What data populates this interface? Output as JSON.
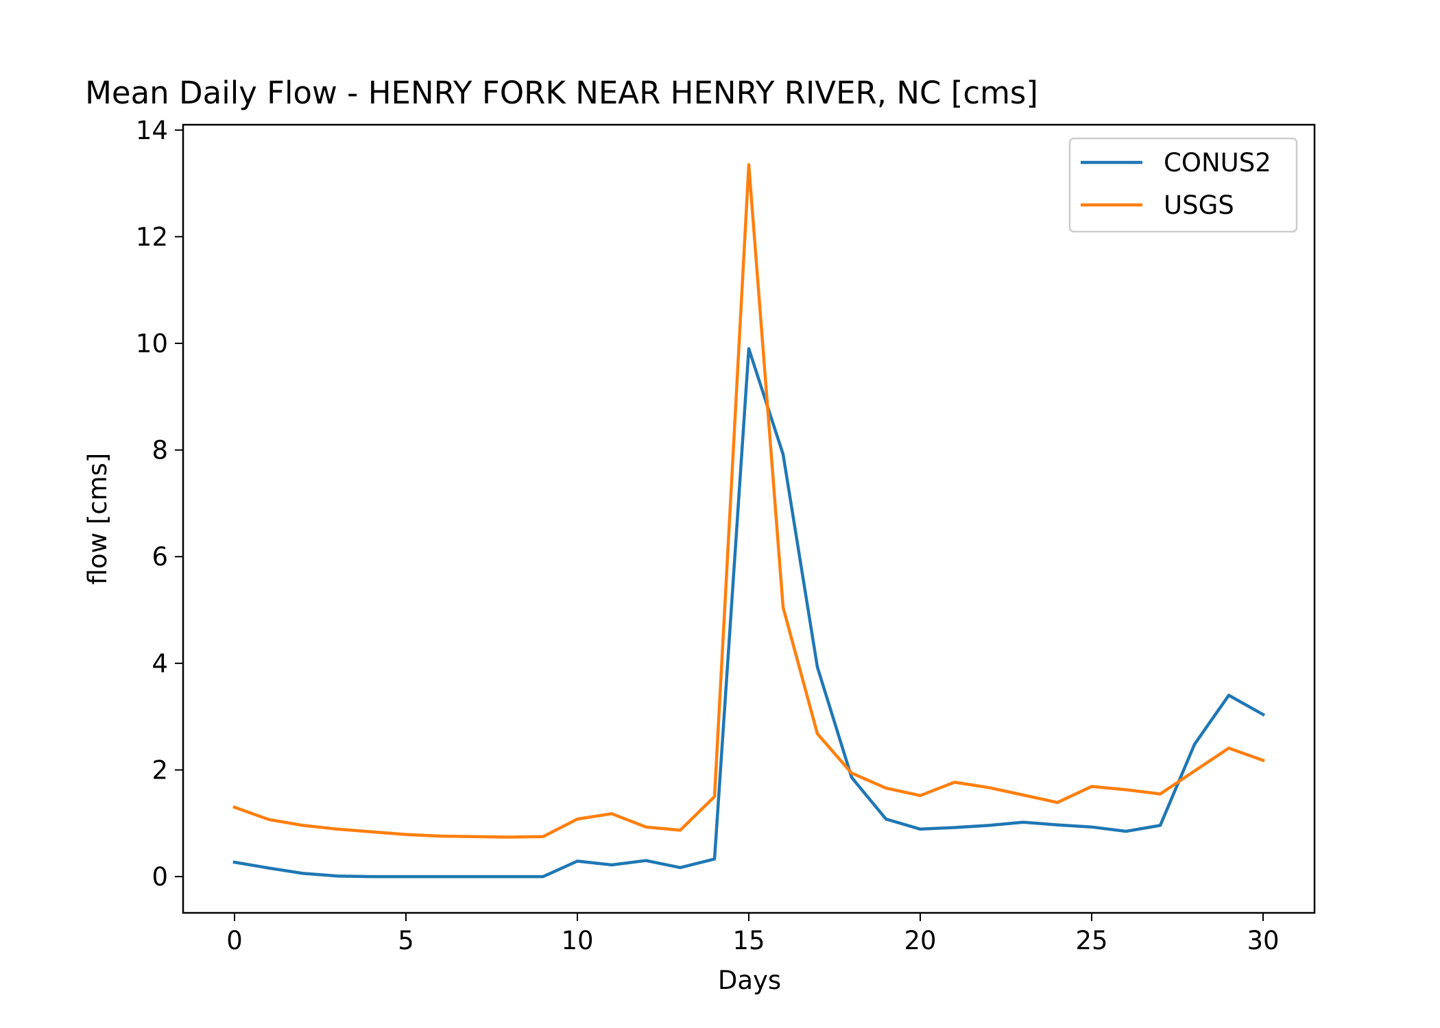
{
  "chart_data": {
    "type": "line",
    "title": "Mean Daily Flow - HENRY FORK NEAR HENRY RIVER, NC [cms]",
    "xlabel": "Days",
    "ylabel": "flow [cms]",
    "xlim": [
      -1.5,
      31.5
    ],
    "ylim": [
      -0.68,
      14.1
    ],
    "xticks": [
      0,
      5,
      10,
      15,
      20,
      25,
      30
    ],
    "yticks": [
      0,
      2,
      4,
      6,
      8,
      10,
      12,
      14
    ],
    "grid": false,
    "legend_position": "top-right",
    "x": [
      0,
      1,
      2,
      3,
      4,
      5,
      6,
      7,
      8,
      9,
      10,
      11,
      12,
      13,
      14,
      15,
      16,
      17,
      18,
      19,
      20,
      21,
      22,
      23,
      24,
      25,
      26,
      27,
      28,
      29,
      30
    ],
    "series": [
      {
        "name": "CONUS2",
        "color": "#1f77b4",
        "values": [
          0.27,
          0.16,
          0.06,
          0.01,
          0.0,
          0.0,
          0.0,
          0.0,
          0.0,
          0.0,
          0.29,
          0.22,
          0.3,
          0.17,
          0.33,
          9.9,
          7.92,
          3.93,
          1.86,
          1.08,
          0.89,
          0.92,
          0.96,
          1.02,
          0.97,
          0.93,
          0.85,
          0.96,
          2.48,
          3.4,
          3.04
        ]
      },
      {
        "name": "USGS",
        "color": "#ff7f0e",
        "values": [
          1.3,
          1.07,
          0.96,
          0.89,
          0.84,
          0.79,
          0.76,
          0.75,
          0.74,
          0.75,
          1.08,
          1.18,
          0.93,
          0.87,
          1.5,
          13.35,
          5.05,
          2.68,
          1.94,
          1.66,
          1.52,
          1.77,
          1.67,
          1.53,
          1.39,
          1.69,
          1.63,
          1.55,
          1.98,
          2.41,
          2.18
        ]
      }
    ]
  }
}
